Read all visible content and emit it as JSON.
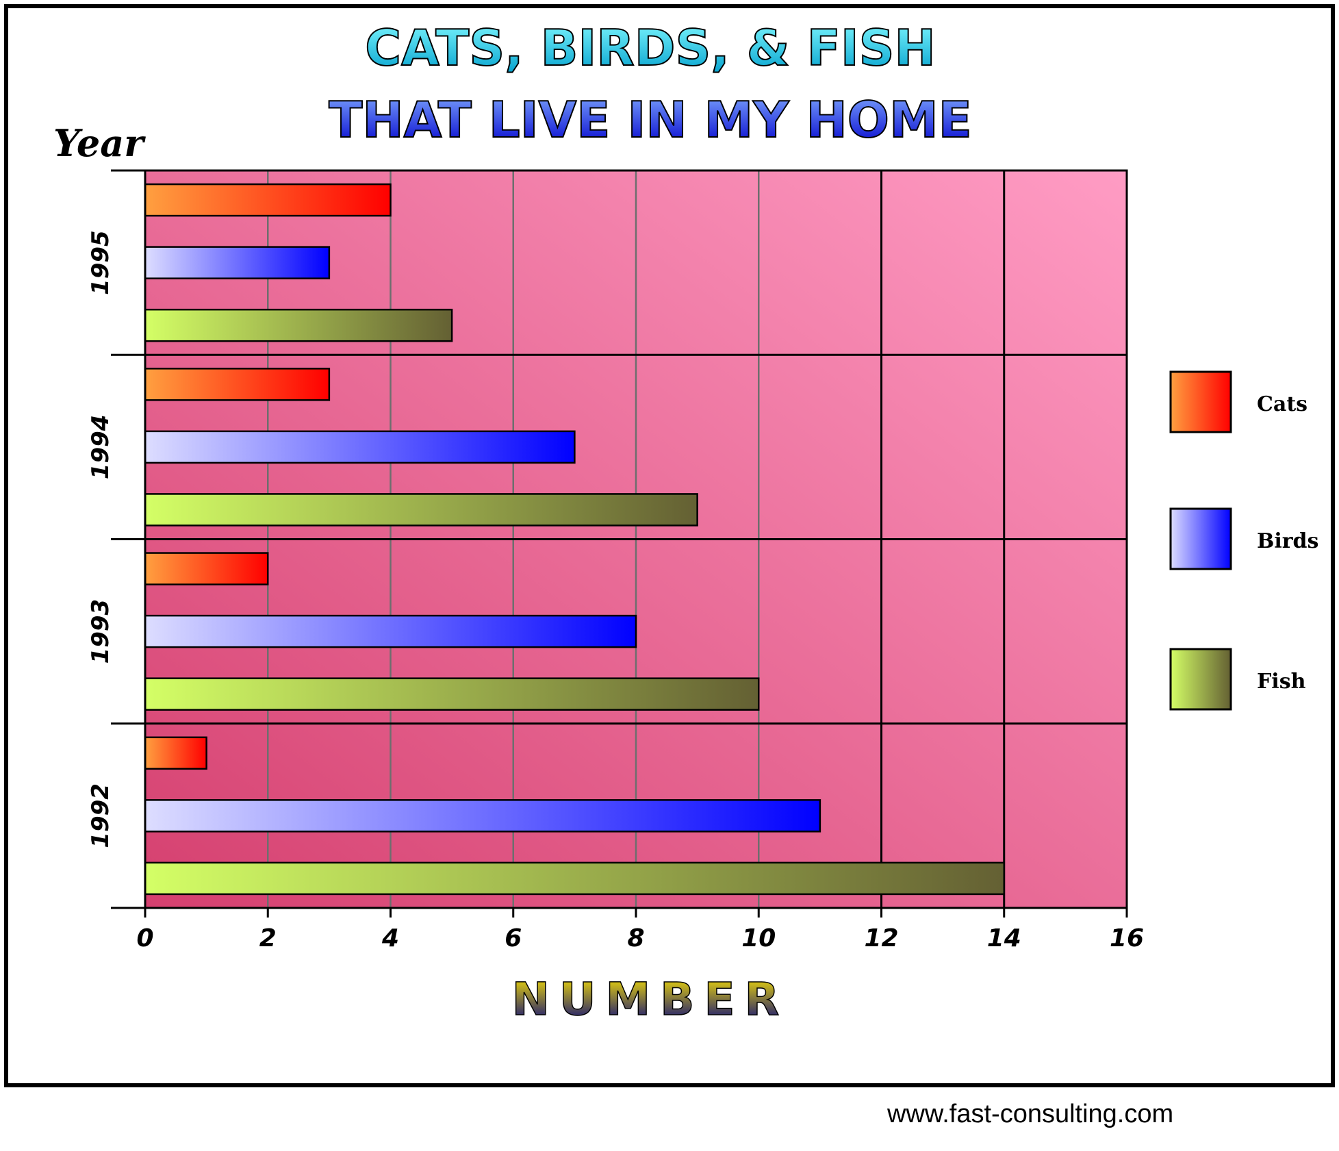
{
  "colors": {
    "plot_background_dark": "#d5406f",
    "plot_background_light": "#ff9cc4",
    "cats": [
      "#ffa040",
      "#ff0000"
    ],
    "birds": [
      "#ddddff",
      "#0000ff"
    ],
    "fish": [
      "#d4ff66",
      "#646033"
    ],
    "title_line1": [
      "#7ff8ff",
      "#009ecc"
    ],
    "title_line2": [
      "#7fa8ff",
      "#0000cc"
    ],
    "xlabel": [
      "#ffe800",
      "#000080"
    ]
  },
  "chart_data": {
    "type": "bar",
    "orientation": "horizontal",
    "title": [
      "CATS, BIRDS, & FISH",
      "THAT LIVE IN MY HOME"
    ],
    "ylabel": "Year",
    "xlabel": "NUMBER",
    "categories": [
      "1995",
      "1994",
      "1993",
      "1992"
    ],
    "series": [
      {
        "name": "Cats",
        "values": [
          4,
          3,
          2,
          1
        ]
      },
      {
        "name": "Birds",
        "values": [
          3,
          7,
          8,
          11
        ]
      },
      {
        "name": "Fish",
        "values": [
          5,
          9,
          10,
          14
        ]
      }
    ],
    "xlim": [
      0,
      16
    ],
    "xticks": [
      "0",
      "2",
      "4",
      "6",
      "8",
      "10",
      "12",
      "14",
      "16"
    ],
    "grid": true,
    "legend_position": "right"
  },
  "footer": "www.fast-consulting.com"
}
